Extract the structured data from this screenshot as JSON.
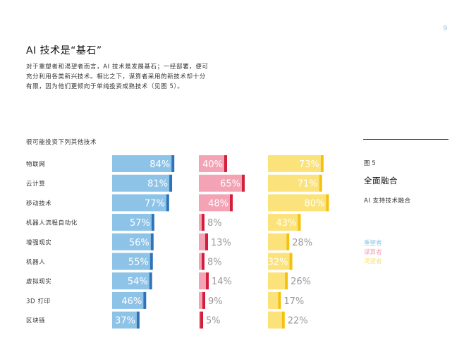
{
  "page_number": "9",
  "title": "AI 技术是“基石”",
  "intro_lines": [
    "对于重塑者和渴望者而言，AI 技术是发展基石；一经部署，便可",
    "充分利用各类新兴技术。相比之下，谋算者采用的新技术却十分",
    "有限，因为他们更倾向于单纯投资成熟技术（见图 5）。"
  ],
  "section_label": "很可能投资下列其他技术",
  "figure": {
    "number": "图 5",
    "title": "全面融合",
    "subtitle": "AI 支持技术融合"
  },
  "legend": [
    {
      "label": "重塑者",
      "color": "#8ec3e8"
    },
    {
      "label": "谋算者",
      "color": "#f4a3b5"
    },
    {
      "label": "渴望者",
      "color": "#fbe27a"
    }
  ],
  "colors": {
    "blue_fill": "#8ec3e8",
    "blue_edge": "#2f73b9",
    "pink_fill": "#f4a3b5",
    "pink_edge": "#d21f3c",
    "yellow_fill": "#fbe27a",
    "yellow_edge": "#f4c20d",
    "label_outside": "#999999",
    "label_inside": "#ffffff"
  },
  "chart_data": {
    "type": "bar",
    "orientation": "horizontal",
    "categories": [
      "物联网",
      "云计算",
      "移动技术",
      "机器人流程自动化",
      "增强现实",
      "机器人",
      "虚拟现实",
      "3D 打印",
      "区块链"
    ],
    "series": [
      {
        "name": "重塑者",
        "values": [
          84,
          81,
          77,
          57,
          56,
          55,
          54,
          46,
          37
        ]
      },
      {
        "name": "谋算者",
        "values": [
          40,
          65,
          48,
          8,
          13,
          8,
          14,
          9,
          5
        ]
      },
      {
        "name": "渴望者",
        "values": [
          73,
          71,
          80,
          43,
          28,
          32,
          26,
          17,
          22
        ]
      }
    ],
    "labels": [
      [
        "84%",
        "81%",
        "77%",
        "57%",
        "56%",
        "55%",
        "54%",
        "46%",
        "37%"
      ],
      [
        "40%",
        "65%",
        "48%",
        "8%",
        "13%",
        "8%",
        "14%",
        "9%",
        "5%"
      ],
      [
        "73%",
        "71%",
        "80%",
        "43%",
        "28%",
        "32%",
        "26%",
        "17%",
        "22%"
      ]
    ],
    "unit": "%"
  }
}
